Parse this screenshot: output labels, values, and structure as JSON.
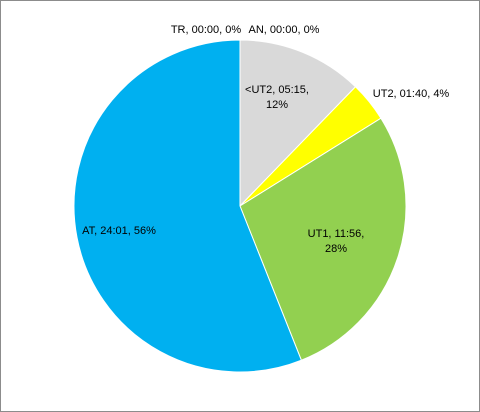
{
  "chart_data": {
    "type": "pie",
    "title": "",
    "legend": "none",
    "start_angle_deg": 0,
    "direction": "clockwise",
    "slices": [
      {
        "category": "TR",
        "time": "00:00",
        "percent": 0,
        "value": 0,
        "color": "#2e75b6",
        "label_lines": [
          "TR, 00:00, 0%"
        ]
      },
      {
        "category": "AN",
        "time": "00:00",
        "percent": 0,
        "value": 0,
        "color": "#ed7d31",
        "label_lines": [
          "AN, 00:00, 0%"
        ]
      },
      {
        "category": "<UT2",
        "time": "05:15",
        "percent": 12,
        "value": 315,
        "color": "#d9d9d9",
        "label_lines": [
          "<UT2, 05:15,",
          "12%"
        ]
      },
      {
        "category": "UT2",
        "time": "01:40",
        "percent": 4,
        "value": 100,
        "color": "#ffff00",
        "label_lines": [
          "UT2, 01:40, 4%"
        ]
      },
      {
        "category": "UT1",
        "time": "11:56",
        "percent": 28,
        "value": 716,
        "color": "#92d050",
        "label_lines": [
          "UT1, 11:56,",
          "28%"
        ]
      },
      {
        "category": "AT",
        "time": "24:01",
        "percent": 56,
        "value": 1441,
        "color": "#00b0f0",
        "label_lines": [
          "AT, 24:01, 56%"
        ]
      }
    ]
  }
}
